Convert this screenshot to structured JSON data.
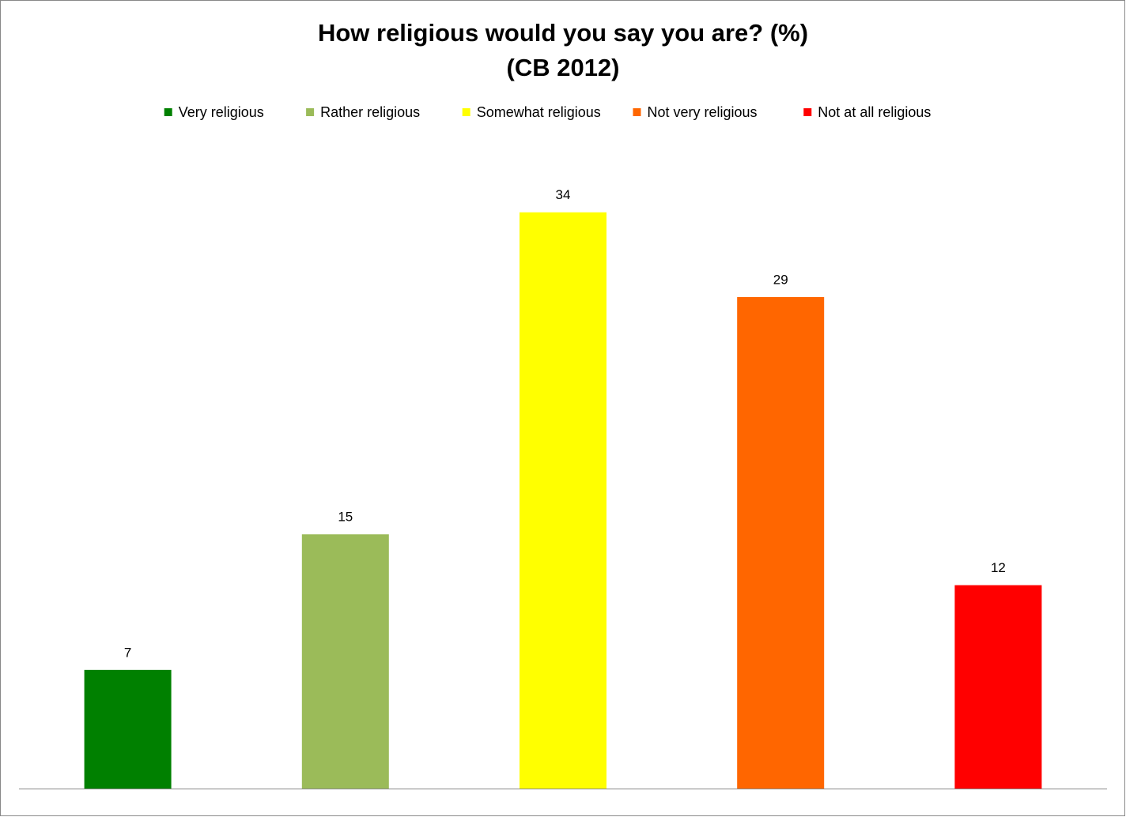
{
  "chart_data": {
    "type": "bar",
    "title": "How religious would you say you are? (%)",
    "subtitle": "(CB 2012)",
    "series": [
      {
        "name": "Very religious",
        "color": "#008000",
        "values": [
          7
        ]
      },
      {
        "name": "Rather religious",
        "color": "#9bbb59",
        "values": [
          15
        ]
      },
      {
        "name": "Somewhat religious",
        "color": "#ffff00",
        "values": [
          34
        ]
      },
      {
        "name": "Not very religious",
        "color": "#ff6600",
        "values": [
          29
        ]
      },
      {
        "name": "Not at all religious",
        "color": "#ff0000",
        "values": [
          12
        ]
      }
    ],
    "ylim": [
      0,
      35
    ],
    "legend": "top"
  }
}
